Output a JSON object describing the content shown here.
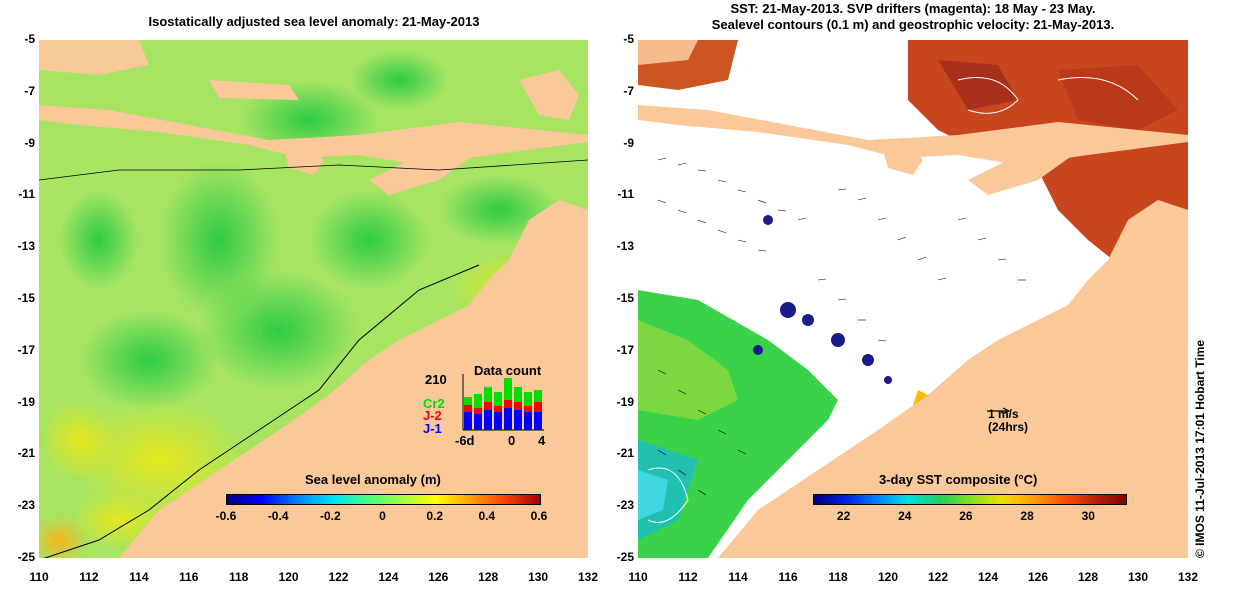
{
  "left": {
    "title": "Isostatically adjusted sea level anomaly: 21-May-2013",
    "colorbar_title": "Sea level anomaly (m)",
    "colorbar_ticks": [
      "-0.6",
      "-0.4",
      "-0.2",
      "0",
      "0.2",
      "0.4",
      "0.6"
    ],
    "inset": {
      "title": "Data count",
      "max_count": "210",
      "missions": [
        {
          "name": "Cr2",
          "color": "#00dd00"
        },
        {
          "name": "J-2",
          "color": "#ff0000"
        },
        {
          "name": "J-1",
          "color": "#0000ff"
        }
      ],
      "x_ticks": [
        "-6d",
        "0",
        "4"
      ]
    }
  },
  "right": {
    "title_line1": "SST: 21-May-2013. SVP drifters (magenta): 18 May - 23 May.",
    "title_line2": "Sealevel contours (0.1 m) and geostrophic velocity: 21-May-2013.",
    "colorbar_title": "3-day SST composite (°C)",
    "colorbar_ticks": [
      "22",
      "24",
      "26",
      "28",
      "30"
    ],
    "scale_arrow": {
      "line1": "1 m/s",
      "line2": "(24hrs)"
    }
  },
  "axes": {
    "lat_ticks": [
      "-5",
      "-7",
      "-9",
      "-11",
      "-13",
      "-15",
      "-17",
      "-19",
      "-21",
      "-23",
      "-25"
    ],
    "lon_ticks": [
      "110",
      "112",
      "114",
      "116",
      "118",
      "120",
      "122",
      "124",
      "126",
      "128",
      "130",
      "132"
    ]
  },
  "footer": "© IMOS 11-Jul-2013 17:01 Hobart Time",
  "colors": {
    "land": "#fbc89a",
    "sla_background": "#9fe36a",
    "sst_warm": "#c8461e",
    "sst_cool": "#3ad24a"
  }
}
